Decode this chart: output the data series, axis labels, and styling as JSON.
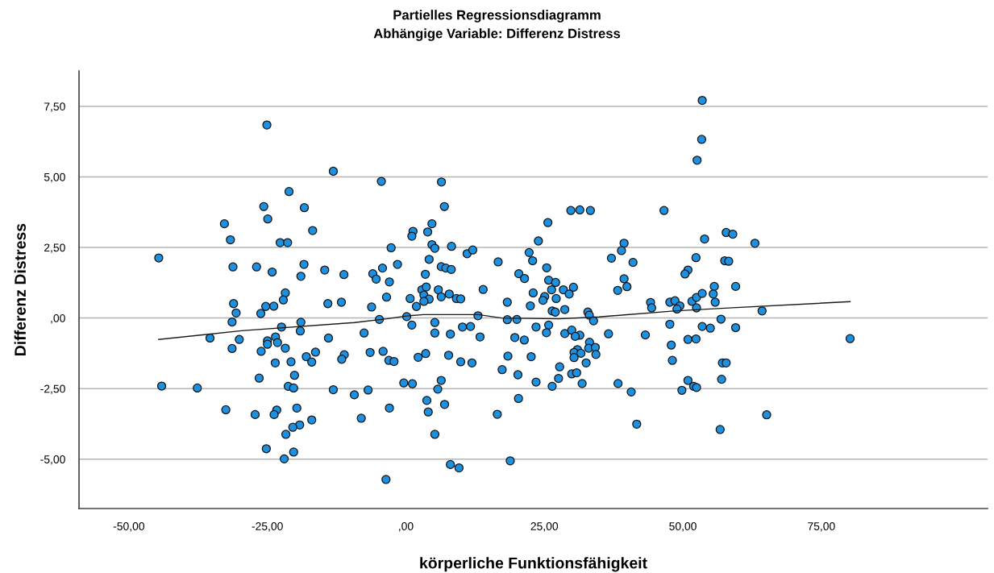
{
  "chart_data": {
    "type": "scatter",
    "title": "Partielles Regressionsdiagramm",
    "subtitle": "Abhängige Variable: Differenz Distress",
    "xlabel": "körperliche Funktionsfähigkeit",
    "ylabel": "Differenz Distress",
    "xlim": [
      -59,
      105
    ],
    "ylim": [
      -6.75,
      8.75
    ],
    "xticks": [
      {
        "value": -50,
        "label": "-50,00"
      },
      {
        "value": -25,
        "label": "-25,00"
      },
      {
        "value": 0,
        "label": ",00"
      },
      {
        "value": 25,
        "label": "25,00"
      },
      {
        "value": 50,
        "label": "50,00"
      },
      {
        "value": 75,
        "label": "75,00"
      }
    ],
    "yticks": [
      {
        "value": -5,
        "label": "-5,00"
      },
      {
        "value": -2.5,
        "label": "-2,50"
      },
      {
        "value": 0,
        "label": ",00"
      },
      {
        "value": 2.5,
        "label": "2,50"
      },
      {
        "value": 5,
        "label": "5,00"
      },
      {
        "value": 7.5,
        "label": "7,50"
      }
    ],
    "grid": "y",
    "marker": "circle",
    "series": [
      {
        "color": "#1e90e0",
        "x": [
          -25.09,
          -13.1,
          -4.42,
          -21.09,
          -25.65,
          -18.33,
          -24.93,
          -32.76,
          -16.83,
          -31.67,
          -22.69,
          -21.35,
          -2.66,
          -44.61,
          -31.21,
          -26.95,
          -24.14,
          -18.39,
          -18.95,
          -14.65,
          -11.18,
          -5.97,
          -4.22,
          -1.51,
          -5.36,
          -2.97,
          -21.76,
          -22.12,
          -31.1,
          -25.29,
          -23.84,
          -14.08,
          -11.64,
          -3.49,
          -6.19,
          -30.64,
          -26.18,
          -31.37,
          -18.95,
          -4.78,
          -22.44,
          -19.06,
          -35.36,
          -30.07,
          -23.53,
          -24.99,
          -13.97,
          -7.54,
          -31.37,
          -24.99,
          -23.17,
          -21.76,
          -26.12,
          -16.31,
          -17.97,
          -16.99,
          -23.58,
          -20.73,
          -11.12,
          -11.58,
          -6.45,
          -4.11,
          -3.07,
          -2.14,
          -20.1,
          -26.48,
          -44.08,
          -37.65,
          -21.24,
          -20.26,
          -13.1,
          -9.3,
          -6.82,
          -0.38,
          -32.5,
          -27.21,
          -23.31,
          -23.78,
          -19.68,
          -16.99,
          -8.05,
          -2.97,
          -19.17,
          -20.41,
          -21.66,
          -25.19,
          -20.26,
          -21.96,
          -3.59,
          53.5,
          53.4,
          52.57,
          6.42,
          6.95,
          29.78,
          31.4,
          33.31,
          46.6,
          25.64,
          4.71,
          1.29,
          3.94,
          1.08,
          23.92,
          53.92,
          4.71,
          5.23,
          8.24,
          11.05,
          12.08,
          22.25,
          22.88,
          16.66,
          39.39,
          38.92,
          37.11,
          41.0,
          52.37,
          4.2,
          6.38,
          7.21,
          8.2,
          25.42,
          50.92,
          50.39,
          3.52,
          20.39,
          21.42,
          25.78,
          27.03,
          39.39,
          39.91,
          38.24,
          55.68,
          2.89,
          3.68,
          5.86,
          13.95,
          26.31,
          28.43,
          30.25,
          29.48,
          22.98,
          3.26,
          6.38,
          7.83,
          9.13,
          9.9,
          0.77,
          4.2,
          3.26,
          1.9,
          25.06,
          24.75,
          27.14,
          18.31,
          22.47,
          28.69,
          26.41,
          26.98,
          32.85,
          44.17,
          44.37,
          47.65,
          48.58,
          49.46,
          48.94,
          51.64,
          52.47,
          52.47,
          53.5,
          55.48,
          55.84,
          0.15,
          1.08,
          5.23,
          13.02,
          18.31,
          20.03,
          33.11,
          33.88,
          56.89,
          5.23,
          8.04,
          10.22,
          11.67,
          23.5,
          25.78,
          25.38,
          28.69,
          29.94,
          31.4,
          30.57,
          36.58,
          43.23,
          47.65,
          53.5,
          54.96,
          13.39,
          19.67,
          21.38,
          47.91,
          50.92,
          52.37,
          33.15,
          33.01,
          34.2,
          30.97,
          30.36,
          31.6,
          34.3,
          30.36,
          32.54,
          3.58,
          2.22,
          7.72,
          9.9,
          11.93,
          18.42,
          22.62,
          48.11,
          57.14,
          27.76,
          17.38,
          20.23,
          27.56,
          29.94,
          30.83,
          23.5,
          26.41,
          31.82,
          38.3,
          40.68,
          50.92,
          51.95,
          52.47,
          49.83,
          56.99,
          1.18,
          6.38,
          5.76,
          3.78,
          6.99,
          4.04,
          20.33,
          16.5,
          41.67,
          56.73,
          5.23,
          8.04,
          9.59,
          18.84,
          57.82,
          59.01,
          63.01,
          57.56,
          58.28,
          59.53,
          64.3,
          59.53,
          80.19,
          57.82,
          65.13
        ],
        "values": [
          6.84,
          5.2,
          4.84,
          4.48,
          3.95,
          3.91,
          3.51,
          3.34,
          3.1,
          2.77,
          2.67,
          2.67,
          2.49,
          2.13,
          1.81,
          1.81,
          1.63,
          1.9,
          1.48,
          1.7,
          1.54,
          1.57,
          1.77,
          1.9,
          1.38,
          1.28,
          0.89,
          0.64,
          0.51,
          0.41,
          0.42,
          0.51,
          0.56,
          0.74,
          0.39,
          0.18,
          0.16,
          -0.14,
          -0.15,
          -0.05,
          -0.32,
          -0.46,
          -0.71,
          -0.76,
          -0.67,
          -0.81,
          -0.71,
          -0.53,
          -1.08,
          -0.93,
          -0.87,
          -1.07,
          -1.18,
          -1.21,
          -1.37,
          -1.56,
          -1.59,
          -1.55,
          -1.3,
          -1.46,
          -1.22,
          -1.18,
          -1.5,
          -1.54,
          -2.03,
          -2.13,
          -2.41,
          -2.48,
          -2.42,
          -2.48,
          -2.54,
          -2.72,
          -2.55,
          -2.3,
          -3.25,
          -3.42,
          -3.26,
          -3.42,
          -3.19,
          -3.61,
          -3.55,
          -3.19,
          -3.79,
          -3.87,
          -4.12,
          -4.63,
          -4.75,
          -4.99,
          -5.72,
          7.71,
          6.33,
          5.59,
          4.82,
          3.95,
          3.81,
          3.83,
          3.81,
          3.81,
          3.38,
          3.34,
          3.07,
          3.05,
          2.9,
          2.73,
          2.8,
          2.6,
          2.47,
          2.54,
          2.28,
          2.41,
          2.32,
          2.03,
          1.99,
          2.65,
          2.39,
          2.12,
          1.97,
          2.14,
          2.08,
          1.82,
          1.77,
          1.72,
          1.78,
          1.7,
          1.56,
          1.55,
          1.57,
          1.4,
          1.34,
          1.26,
          1.39,
          1.11,
          0.98,
          1.12,
          1.0,
          1.1,
          1.0,
          1.01,
          1.0,
          1.0,
          1.09,
          0.85,
          0.89,
          0.81,
          0.75,
          0.85,
          0.69,
          0.68,
          0.69,
          0.67,
          0.59,
          0.41,
          0.76,
          0.63,
          0.69,
          0.56,
          0.43,
          0.3,
          0.25,
          0.21,
          0.21,
          0.55,
          0.36,
          0.56,
          0.61,
          0.43,
          0.32,
          0.59,
          0.36,
          0.73,
          0.87,
          0.85,
          0.56,
          0.05,
          -0.25,
          -0.16,
          0.08,
          -0.06,
          -0.05,
          0.1,
          -0.1,
          -0.04,
          -0.53,
          -0.57,
          -0.32,
          -0.3,
          -0.32,
          -0.25,
          -0.52,
          -0.55,
          -0.43,
          -0.61,
          -0.65,
          -0.56,
          -0.6,
          -0.22,
          -0.3,
          -0.36,
          -0.67,
          -0.69,
          -0.78,
          -0.96,
          -0.76,
          -0.74,
          -0.86,
          -1.07,
          -1.04,
          -1.12,
          -1.22,
          -1.25,
          -1.29,
          -1.4,
          -1.59,
          -1.26,
          -1.39,
          -1.32,
          -1.55,
          -1.59,
          -1.35,
          -1.37,
          -1.5,
          -1.59,
          -1.73,
          -1.83,
          -2.01,
          -2.14,
          -1.98,
          -1.94,
          -2.27,
          -2.42,
          -2.32,
          -2.32,
          -2.62,
          -2.21,
          -2.42,
          -2.46,
          -2.56,
          -2.17,
          -2.33,
          -2.21,
          -2.52,
          -2.92,
          -3.06,
          -3.33,
          -2.85,
          -3.41,
          -3.76,
          -3.95,
          -4.12,
          -5.19,
          -5.31,
          -5.06,
          3.03,
          2.97,
          2.65,
          2.03,
          2.01,
          1.12,
          0.25,
          -0.34,
          -0.73,
          -1.59,
          -3.43
        ]
      },
      {
        "type": "line",
        "color": "#1a1a1a",
        "marker": "none",
        "x": [
          -44.62,
          -29.65,
          -9.3,
          -3.49,
          0.04,
          3.2,
          13.08,
          17.3,
          27.62,
          34.88,
          48.4,
          57.56,
          80.19
        ],
        "values": [
          -0.76,
          -0.45,
          -0.16,
          -0.03,
          0.07,
          0.12,
          0.12,
          0.0,
          -0.03,
          0.04,
          0.25,
          0.35,
          0.58
        ]
      }
    ]
  }
}
